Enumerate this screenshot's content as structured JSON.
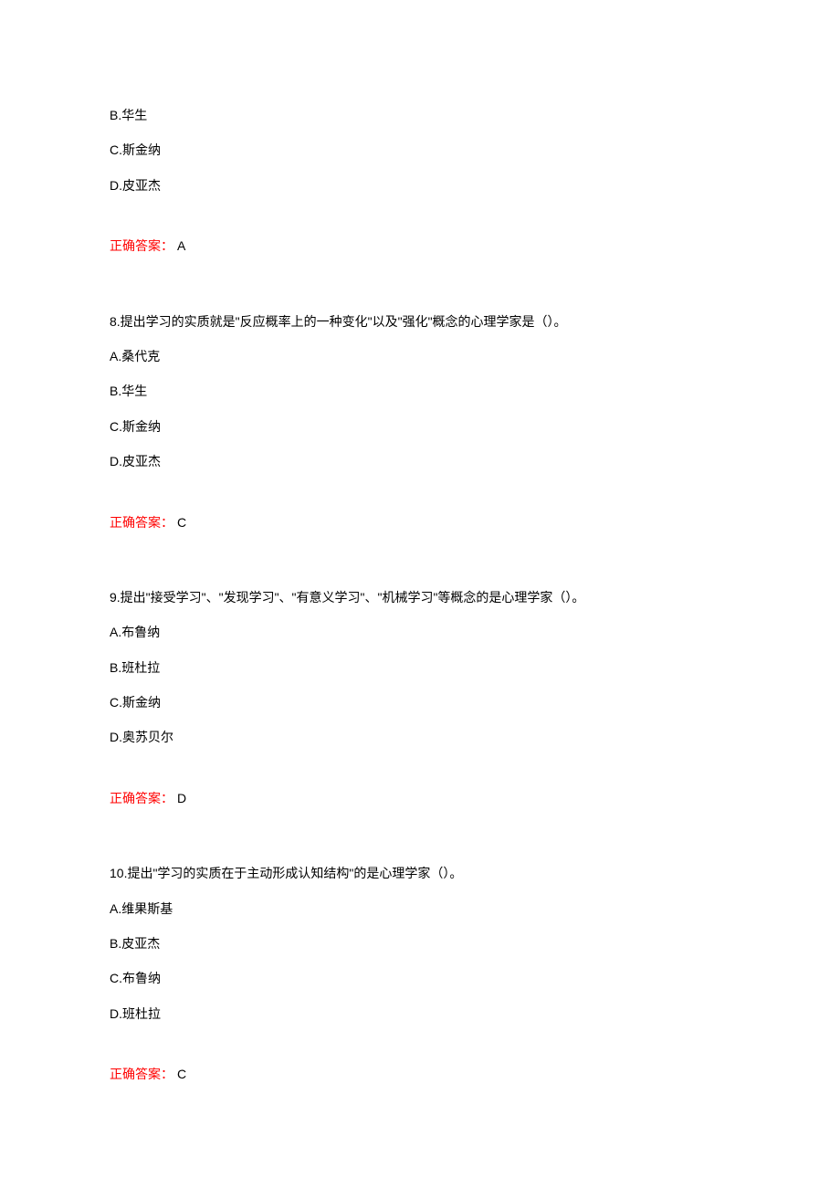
{
  "q7": {
    "optionB": "B.华生",
    "optionC": "C.斯金纳",
    "optionD": "D.皮亚杰",
    "answerLabel": "正确答案：",
    "answerLetter": "A"
  },
  "q8": {
    "stem": "8.提出学习的实质就是\"反应概率上的一种变化\"以及\"强化\"概念的心理学家是（）。",
    "optionA": "A.桑代克",
    "optionB": "B.华生",
    "optionC": "C.斯金纳",
    "optionD": "D.皮亚杰",
    "answerLabel": "正确答案：",
    "answerLetter": "C"
  },
  "q9": {
    "stem": "9.提出\"接受学习\"、\"发现学习\"、\"有意义学习\"、\"机械学习\"等概念的是心理学家（）。",
    "optionA": "A.布鲁纳",
    "optionB": "B.班杜拉",
    "optionC": "C.斯金纳",
    "optionD": "D.奥苏贝尔",
    "answerLabel": "正确答案：",
    "answerLetter": "D"
  },
  "q10": {
    "stem": "10.提出\"学习的实质在于主动形成认知结构\"的是心理学家（）。",
    "optionA": "A.维果斯基",
    "optionB": "B.皮亚杰",
    "optionC": "C.布鲁纳",
    "optionD": "D.班杜拉",
    "answerLabel": "正确答案：",
    "answerLetter": "C"
  }
}
